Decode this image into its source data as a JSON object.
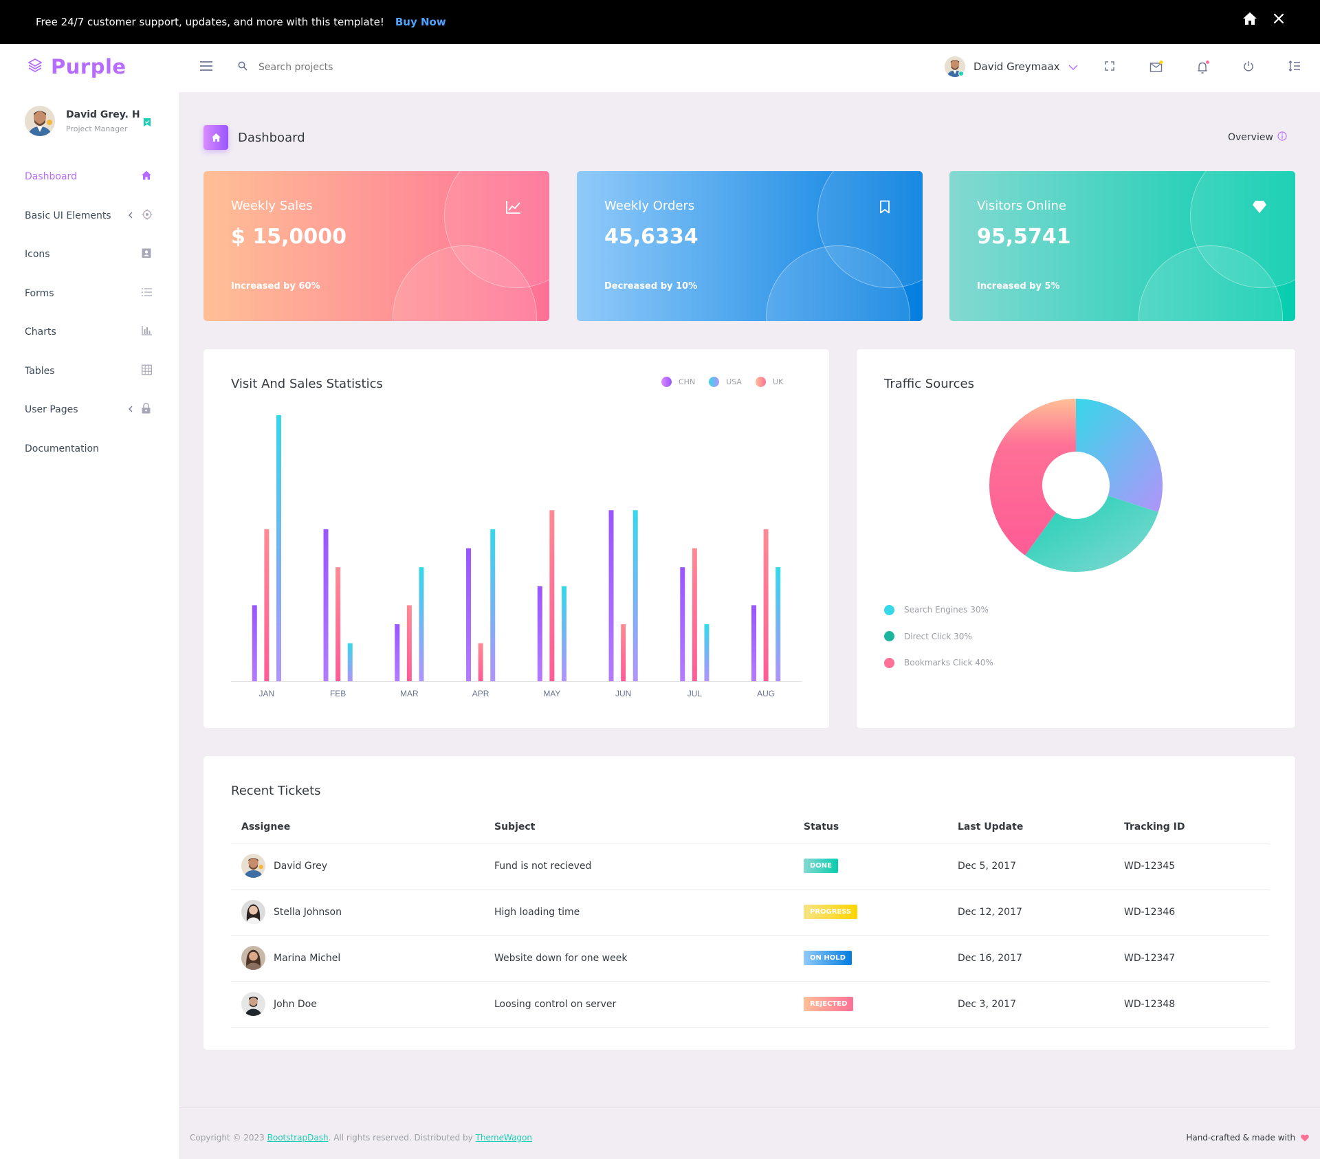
{
  "promo": {
    "text": "Free 24/7 customer support, updates, and more with this template!",
    "cta": "Buy Now"
  },
  "brand": {
    "name": "Purple"
  },
  "search": {
    "placeholder": "Search projects"
  },
  "navbar": {
    "user_name": "David Greymaax"
  },
  "sidebar": {
    "profile": {
      "name": "David Grey. H",
      "role": "Project Manager"
    },
    "items": [
      {
        "label": "Dashboard",
        "icon": "home-icon",
        "active": true
      },
      {
        "label": "Basic UI Elements",
        "icon": "crosshairs-icon",
        "submenu": true
      },
      {
        "label": "Icons",
        "icon": "contacts-icon"
      },
      {
        "label": "Forms",
        "icon": "list-icon"
      },
      {
        "label": "Charts",
        "icon": "bar-chart-icon"
      },
      {
        "label": "Tables",
        "icon": "table-icon"
      },
      {
        "label": "User Pages",
        "icon": "lock-icon",
        "submenu": true
      },
      {
        "label": "Documentation",
        "icon": ""
      }
    ]
  },
  "page": {
    "title": "Dashboard",
    "overview": "Overview"
  },
  "stats": [
    {
      "title": "Weekly Sales",
      "value": "$ 15,0000",
      "note": "Increased by 60%",
      "icon": "chart-line-icon"
    },
    {
      "title": "Weekly Orders",
      "value": "45,6334",
      "note": "Decreased by 10%",
      "icon": "bookmark-icon"
    },
    {
      "title": "Visitors Online",
      "value": "95,5741",
      "note": "Increased by 5%",
      "icon": "diamond-icon"
    }
  ],
  "visit_chart": {
    "title": "Visit And Sales Statistics",
    "legend": [
      "CHN",
      "USA",
      "UK"
    ]
  },
  "traffic": {
    "title": "Traffic Sources",
    "legend": [
      "Search Engines 30%",
      "Direct Click 30%",
      "Bookmarks Click 40%"
    ]
  },
  "chart_data": [
    {
      "type": "bar",
      "categories": [
        "JAN",
        "FEB",
        "MAR",
        "APR",
        "MAY",
        "JUN",
        "JUL",
        "AUG"
      ],
      "series": [
        {
          "name": "CHN",
          "values": [
            20,
            40,
            15,
            35,
            25,
            45,
            30,
            20
          ],
          "color": "#9a55ff"
        },
        {
          "name": "USA",
          "values": [
            40,
            30,
            20,
            10,
            45,
            15,
            35,
            40
          ],
          "color": "#fe7096"
        },
        {
          "name": "UK",
          "values": [
            70,
            10,
            30,
            40,
            25,
            45,
            15,
            30
          ],
          "color": "#4fc3f7"
        }
      ],
      "ylim": [
        0,
        70
      ],
      "grid": false
    },
    {
      "type": "pie",
      "categories": [
        "Search Engines",
        "Direct Click",
        "Bookmarks Click"
      ],
      "values": [
        30,
        30,
        40
      ],
      "colors": [
        "#4dd0e1",
        "#1bcfb4",
        "#fe7096"
      ]
    }
  ],
  "tickets": {
    "title": "Recent Tickets",
    "headers": [
      "Assignee",
      "Subject",
      "Status",
      "Last Update",
      "Tracking ID"
    ],
    "rows": [
      {
        "assignee": "David Grey",
        "subject": "Fund is not recieved",
        "status": "DONE",
        "updated": "Dec 5, 2017",
        "tracking": "WD-12345"
      },
      {
        "assignee": "Stella Johnson",
        "subject": "High loading time",
        "status": "PROGRESS",
        "updated": "Dec 12, 2017",
        "tracking": "WD-12346"
      },
      {
        "assignee": "Marina Michel",
        "subject": "Website down for one week",
        "status": "ON HOLD",
        "updated": "Dec 16, 2017",
        "tracking": "WD-12347"
      },
      {
        "assignee": "John Doe",
        "subject": "Loosing control on server",
        "status": "REJECTED",
        "updated": "Dec 3, 2017",
        "tracking": "WD-12348"
      }
    ]
  },
  "footer": {
    "copy_prefix": "Copyright © 2023 ",
    "link1": "BootstrapDash",
    "copy_mid": ". All rights reserved. Distributed by ",
    "link2": "ThemeWagon",
    "made": "Hand-crafted & made with"
  },
  "colors": {
    "primary": "#b66dff",
    "background": "#f2edf3",
    "success": "#1bcfb4",
    "danger": "#fe7096"
  }
}
